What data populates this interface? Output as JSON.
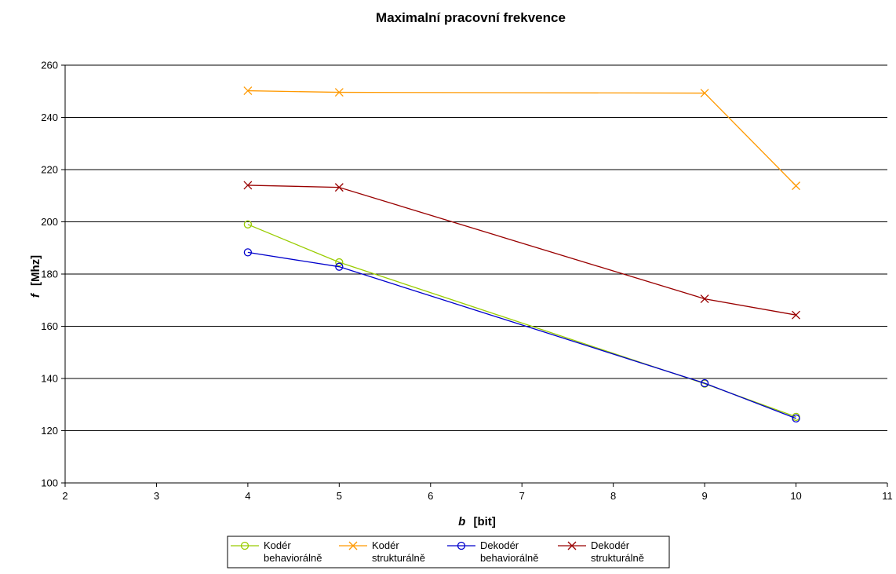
{
  "chart_data": {
    "type": "line",
    "title": "Maximalní pracovní frekvence",
    "xlabel": {
      "symbol": "b",
      "unit": "[bit]"
    },
    "ylabel": {
      "symbol": "f",
      "unit": "[Mhz]"
    },
    "xlim": [
      2,
      11
    ],
    "ylim": [
      100,
      260
    ],
    "xticks": [
      2,
      3,
      4,
      5,
      6,
      7,
      8,
      9,
      10,
      11
    ],
    "yticks": [
      100,
      120,
      140,
      160,
      180,
      200,
      220,
      240,
      260
    ],
    "grid": {
      "y": true,
      "x": false
    },
    "legend": "bottom",
    "series": [
      {
        "name": [
          "Kodér",
          "behaviorálně"
        ],
        "marker": "circle",
        "color": "#99cc00",
        "x": [
          4,
          5,
          9,
          10
        ],
        "y": [
          199,
          184.5,
          138,
          125.3
        ]
      },
      {
        "name": [
          "Kodér",
          "strukturálně"
        ],
        "marker": "x",
        "color": "#ff9900",
        "x": [
          4,
          5,
          9,
          10
        ],
        "y": [
          250.2,
          249.6,
          249.3,
          213.8
        ]
      },
      {
        "name": [
          "Dekodér",
          "behaviorálně"
        ],
        "marker": "circle",
        "color": "#0000cc",
        "x": [
          4,
          5,
          9,
          10
        ],
        "y": [
          188.3,
          182.8,
          138.2,
          124.7
        ]
      },
      {
        "name": [
          "Dekodér",
          "strukturálně"
        ],
        "marker": "x",
        "color": "#990000",
        "x": [
          4,
          5,
          9,
          10
        ],
        "y": [
          214,
          213.2,
          170.5,
          164.3
        ]
      }
    ]
  }
}
